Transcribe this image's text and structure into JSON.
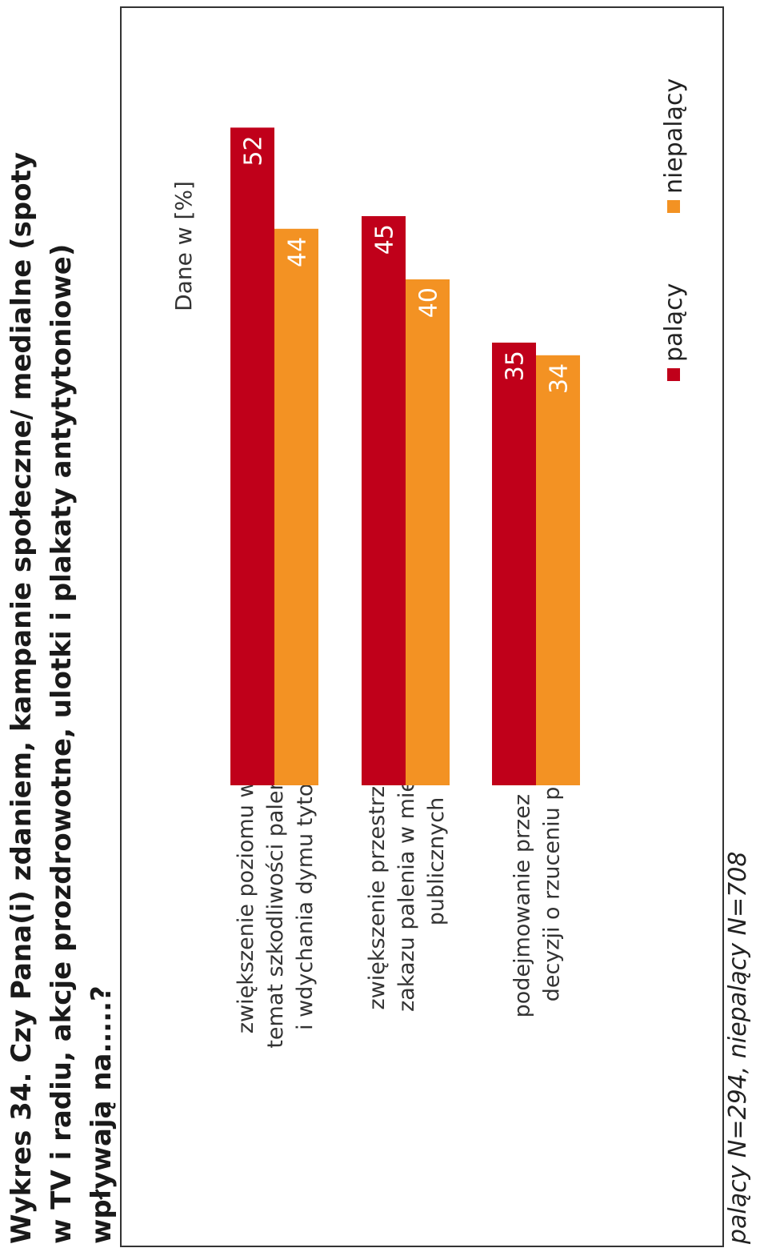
{
  "title": "Wykres 34. Czy Pana(i) zdaniem, kampanie społeczne/ medialne (spoty w TV i radiu, akcje prozdrowotne, ulotki i plakaty antytytoniowe) wpływają na.....?",
  "footnote": "palący N=294, niepalący N=708",
  "chart_data": {
    "type": "bar",
    "orientation": "vertical",
    "unit_label": "Dane w [%]",
    "categories": [
      [
        "zwiększenie poziomu wiedzy na",
        "temat szkodliwości palenia tytoniu",
        "i wdychania dymu tytoniowego"
      ],
      [
        "zwiększenie przestrzegania",
        "zakazu palenia w miejscach",
        "publicznych"
      ],
      [
        "podejmowanie przez palaczy",
        "decyzji o rzuceniu palenia"
      ]
    ],
    "series": [
      {
        "name": "palący",
        "color": "#C0001A",
        "values": [
          52,
          45,
          35
        ]
      },
      {
        "name": "niepalący",
        "color": "#F39223",
        "values": [
          44,
          40,
          34
        ]
      }
    ],
    "ylim": [
      0,
      60
    ],
    "data_labels": true,
    "gridlines": false,
    "legend_position": "bottom"
  }
}
